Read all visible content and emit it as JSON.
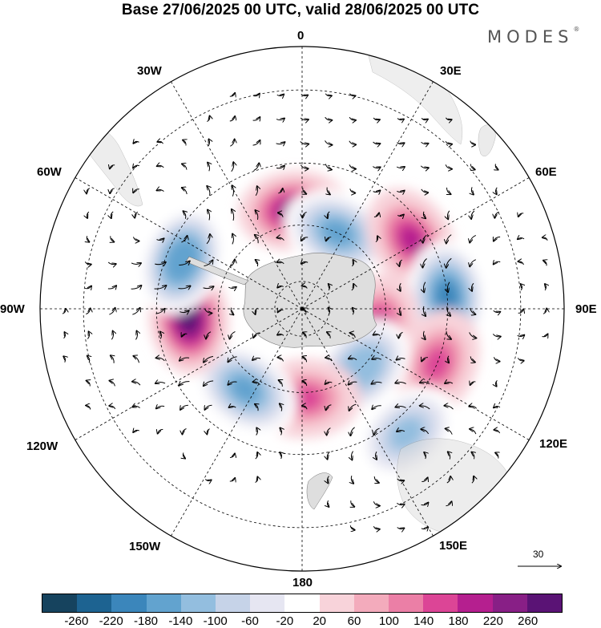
{
  "title": "Base 27/06/2025 00 UTC, valid 28/06/2025 00 UTC",
  "logo": "MODES",
  "logo_mark": "®",
  "longitude_labels": {
    "lon_0": "0",
    "lon_30e": "30E",
    "lon_60e": "60E",
    "lon_90e": "90E",
    "lon_120e": "120E",
    "lon_150e": "150E",
    "lon_180": "180",
    "lon_150w": "150W",
    "lon_120w": "120W",
    "lon_90w": "90W",
    "lon_60w": "60W",
    "lon_30w": "30W"
  },
  "reference_vector": {
    "label": "30"
  },
  "colorbar": {
    "colors": [
      "#16435e",
      "#1d6391",
      "#3b86bb",
      "#62a3cf",
      "#93bedf",
      "#c6d3e8",
      "#e6e6f2",
      "#ffffff",
      "#f8d3da",
      "#f3abbc",
      "#eb7fa6",
      "#dc4596",
      "#b51f8f",
      "#881f86",
      "#5a1375"
    ],
    "labels": [
      "-260",
      "-220",
      "-180",
      "-140",
      "-100",
      "-60",
      "-20",
      "20",
      "60",
      "100",
      "140",
      "180",
      "220",
      "260"
    ]
  },
  "map": {
    "projection": "south polar stereographic",
    "land_color": "#dedede",
    "anomaly_centers": [
      {
        "lon": -5,
        "lat": -55,
        "value": 230
      },
      {
        "lon": 25,
        "lat": -60,
        "value": -150
      },
      {
        "lon": 58,
        "lat": -45,
        "value": 200
      },
      {
        "lon": 85,
        "lat": -40,
        "value": -200
      },
      {
        "lon": 105,
        "lat": -62,
        "value": 190
      },
      {
        "lon": 112,
        "lat": -40,
        "value": 150
      },
      {
        "lon": 135,
        "lat": -60,
        "value": -140
      },
      {
        "lon": 140,
        "lat": -35,
        "value": -130
      },
      {
        "lon": 178,
        "lat": -58,
        "value": 160
      },
      {
        "lon": -145,
        "lat": -55,
        "value": -150
      },
      {
        "lon": -95,
        "lat": -50,
        "value": 270
      },
      {
        "lon": -68,
        "lat": -45,
        "value": -180
      }
    ]
  }
}
